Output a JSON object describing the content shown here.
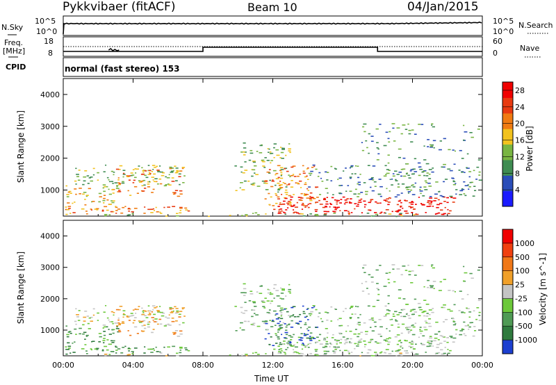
{
  "header": {
    "station": "Pykkvibaer (fitACF)",
    "beam": "Beam 10",
    "date": "04/Jan/2015"
  },
  "strip": {
    "nsky_label": "N.Sky",
    "nsky_tick_hi": "10^5",
    "nsky_tick_lo": "10^0",
    "nsearch_label": "N.Search",
    "nsearch_tick_hi": "10^5",
    "nsearch_tick_lo": "10^0",
    "freq_label_1": "Freq.",
    "freq_label_2": "[MHz]",
    "freq_tick_hi": "18",
    "freq_tick_lo": "8",
    "nave_label": "Nave",
    "nave_tick_hi": "60",
    "nave_tick_lo": "0",
    "cpid_label": "CPID",
    "cpid_text": "normal (fast stereo) 153"
  },
  "chart_data": [
    {
      "type": "heatmap",
      "name": "Power",
      "ylabel": "Slant Range [km]",
      "ylim": [
        180,
        4500
      ],
      "xlim": [
        0,
        24
      ],
      "y_ticks": [
        "1000",
        "2000",
        "3000",
        "4000"
      ],
      "colorbar_label": "Power [dB]",
      "colorbar_ticks": [
        "4",
        "8",
        "12",
        "16",
        "20",
        "24",
        "28"
      ],
      "colorbar_colors": [
        "#1b1bff",
        "#2a4db8",
        "#3f8c52",
        "#79b542",
        "#f2c21e",
        "#f07b12",
        "#e83a10",
        "#f00000"
      ],
      "colorbar_range": [
        0,
        30
      ]
    },
    {
      "type": "heatmap",
      "name": "Velocity",
      "ylabel": "Slant Range [km]",
      "xlabel": "Time UT",
      "ylim": [
        180,
        4500
      ],
      "xlim": [
        0,
        24
      ],
      "y_ticks": [
        "1000",
        "2000",
        "3000",
        "4000"
      ],
      "x_ticks": [
        "00:00",
        "04:00",
        "08:00",
        "12:00",
        "16:00",
        "20:00",
        "00:00"
      ],
      "colorbar_label": "Velocity [m s^-1]",
      "colorbar_ticks": [
        "1000",
        "500",
        "100",
        "25",
        "-25",
        "-100",
        "-500",
        "-1000"
      ],
      "colorbar_colors": [
        "#1c3fd0",
        "#2f7a3e",
        "#4f9a55",
        "#6cc83a",
        "#c4c4c4",
        "#f0a02a",
        "#f07818",
        "#f04010",
        "#f00000"
      ]
    }
  ]
}
